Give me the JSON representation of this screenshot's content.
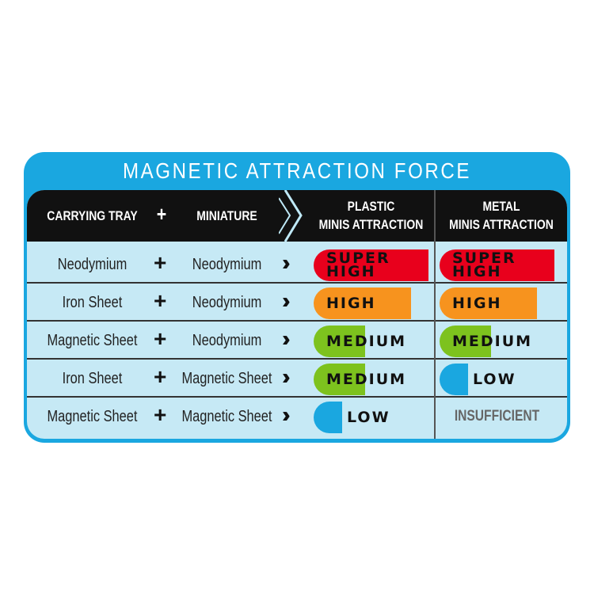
{
  "title": "MAGNETIC ATTRACTION FORCE",
  "headers": {
    "tray": "CARRYING TRAY",
    "plus": "+",
    "mini": "MINIATURE",
    "plastic": "PLASTIC\nMINIS ATTRACTION",
    "metal": "METAL\nMINIS ATTRACTION"
  },
  "colors": {
    "frame": "#1aa7e0",
    "body": "#c6e9f5",
    "SUPER HIGH": "#e8001c",
    "HIGH": "#f7931e",
    "MEDIUM": "#7dc21e",
    "LOW": "#1aa7e0"
  },
  "levels": {
    "SUPER HIGH": 1.0,
    "HIGH": 0.85,
    "MEDIUM": 0.45,
    "LOW": 0.25
  },
  "rows": [
    {
      "tray": "Neodymium",
      "mini": "Neodymium",
      "plastic": "SUPER HIGH",
      "metal": "SUPER HIGH"
    },
    {
      "tray": "Iron Sheet",
      "mini": "Neodymium",
      "plastic": "HIGH",
      "metal": "HIGH"
    },
    {
      "tray": "Magnetic Sheet",
      "mini": "Neodymium",
      "plastic": "MEDIUM",
      "metal": "MEDIUM"
    },
    {
      "tray": "Iron Sheet",
      "mini": "Magnetic Sheet",
      "plastic": "MEDIUM",
      "metal": "LOW"
    },
    {
      "tray": "Magnetic Sheet",
      "mini": "Magnetic Sheet",
      "plastic": "LOW",
      "metal": "INSUFFICIENT"
    }
  ]
}
